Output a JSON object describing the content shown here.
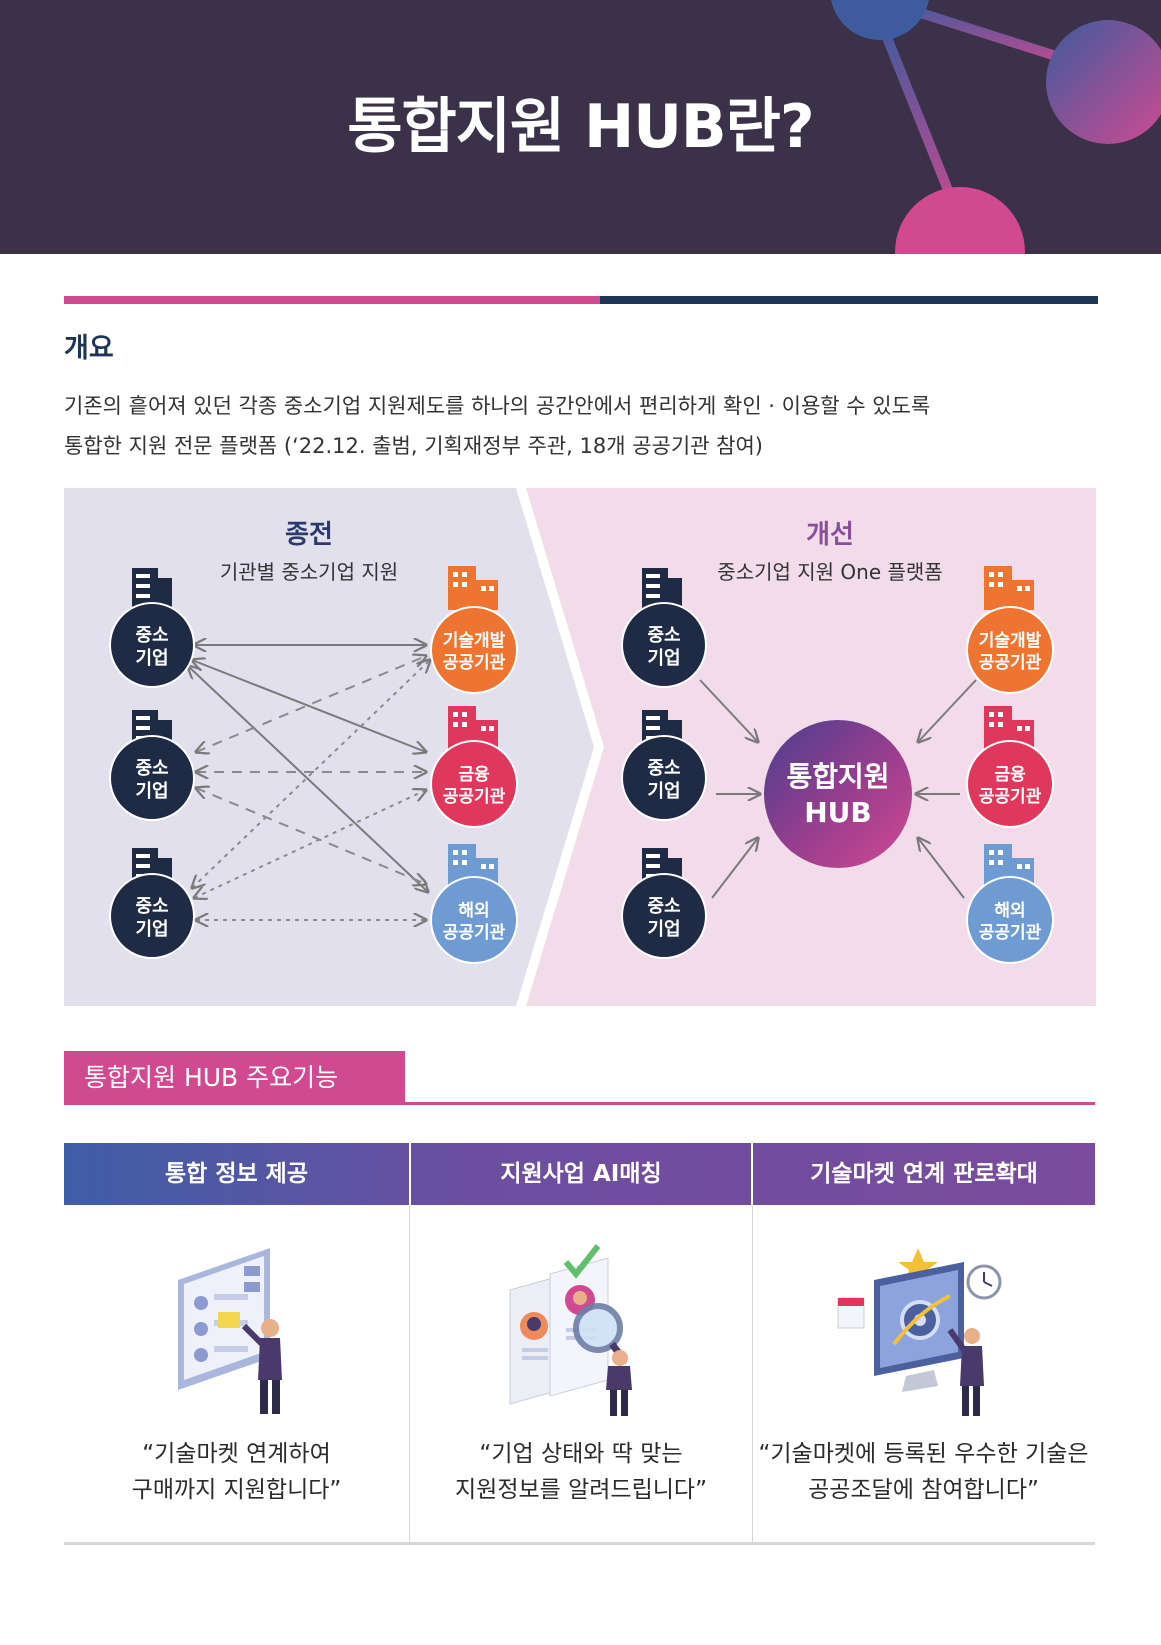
{
  "header": {
    "title": "통합지원 HUB란?",
    "colors": {
      "background": "#3b3148",
      "accent_pink": "#d14a91",
      "accent_blue": "#3f4f88"
    }
  },
  "overview": {
    "title": "개요",
    "line1": "기존의 흩어져 있던 각종 중소기업 지원제도를 하나의 공간안에서 편리하게 확인 · 이용할 수 있도록",
    "line2": "통합한 지원 전문 플랫폼 (‘22.12. 출범, 기획재정부 주관, 18개 공공기관 참여)"
  },
  "diagram": {
    "before": {
      "title": "종전",
      "subtitle": "기관별 중소기업 지원",
      "companies": [
        {
          "line1": "중소",
          "line2": "기업"
        },
        {
          "line1": "중소",
          "line2": "기업"
        },
        {
          "line1": "중소",
          "line2": "기업"
        }
      ],
      "agencies": [
        {
          "line1": "기술개발",
          "line2": "공공기관",
          "color": "#ee7432"
        },
        {
          "line1": "금융",
          "line2": "공공기관",
          "color": "#e0385c"
        },
        {
          "line1": "해외",
          "line2": "공공기관",
          "color": "#6f9bd3"
        }
      ]
    },
    "after": {
      "title": "개선",
      "subtitle": "중소기업 지원 One 플랫폼",
      "hub_line1": "통합지원",
      "hub_line2": "HUB",
      "companies": [
        {
          "line1": "중소",
          "line2": "기업"
        },
        {
          "line1": "중소",
          "line2": "기업"
        },
        {
          "line1": "중소",
          "line2": "기업"
        }
      ],
      "agencies": [
        {
          "line1": "기술개발",
          "line2": "공공기관",
          "color": "#ee7432"
        },
        {
          "line1": "금융",
          "line2": "공공기관",
          "color": "#e0385c"
        },
        {
          "line1": "해외",
          "line2": "공공기관",
          "color": "#6f9bd3"
        }
      ]
    },
    "colors": {
      "company": "#1f2a44",
      "before_bg": "#e3e0ee",
      "after_bg": "#f2dcea",
      "before_title": "#2b3a6b",
      "after_title": "#8a4f9a"
    }
  },
  "features": {
    "section_title": "통합지원 HUB 주요기능",
    "columns": [
      {
        "header": "통합 정보 제공",
        "quote_line1": "“기술마켓 연계하여",
        "quote_line2": "구매까지 지원합니다”",
        "icon": "dashboard-illustration-icon"
      },
      {
        "header": "지원사업 AI매칭",
        "quote_line1": "“기업 상태와 딱 맞는",
        "quote_line2": "지원정보를 알려드립니다”",
        "icon": "profile-matching-illustration-icon"
      },
      {
        "header": "기술마켓 연계 판로확대",
        "quote_line1": "“기술마켓에 등록된 우수한 기술은",
        "quote_line2": "공공조달에 참여합니다”",
        "icon": "monitor-market-illustration-icon"
      }
    ]
  }
}
